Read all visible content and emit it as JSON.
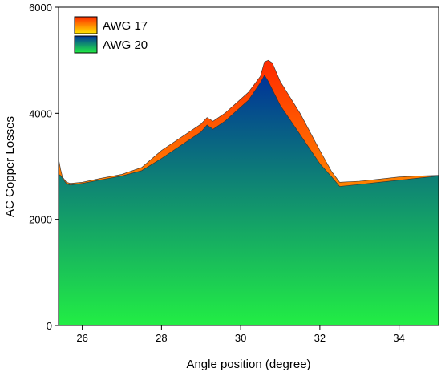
{
  "chart_data": {
    "type": "area",
    "title": "",
    "xlabel": "Angle position (degree)",
    "ylabel": "AC Copper Losses",
    "xlim": [
      25.4,
      35
    ],
    "ylim": [
      0,
      6000
    ],
    "x_ticks": [
      26,
      28,
      30,
      32,
      34
    ],
    "y_ticks": [
      0,
      2000,
      4000,
      6000
    ],
    "x_tick_labels": [
      "26",
      "28",
      "30",
      "32",
      "34"
    ],
    "y_tick_labels": [
      "0",
      "2000",
      "4000",
      "6000"
    ],
    "legend_position": "top-left",
    "grid": false,
    "series": [
      {
        "name": "AWG 17",
        "gradient": [
          "#ff2a00",
          "#ffe600"
        ],
        "x": [
          25.4,
          25.45,
          25.5,
          25.6,
          25.7,
          26.0,
          26.5,
          27.0,
          27.5,
          28.0,
          28.5,
          29.0,
          29.15,
          29.3,
          29.6,
          29.9,
          30.2,
          30.5,
          30.6,
          30.7,
          30.8,
          31.0,
          31.5,
          32.0,
          32.3,
          32.5,
          33.0,
          33.5,
          34.0,
          34.5,
          35.0
        ],
        "y": [
          3150,
          2950,
          2800,
          2700,
          2680,
          2700,
          2780,
          2850,
          2980,
          3300,
          3550,
          3800,
          3920,
          3850,
          4000,
          4200,
          4400,
          4700,
          4970,
          5000,
          4950,
          4600,
          4000,
          3300,
          2900,
          2700,
          2720,
          2760,
          2800,
          2820,
          2830
        ]
      },
      {
        "name": "AWG 20",
        "gradient": [
          "#003399",
          "#22ee44"
        ],
        "x": [
          25.4,
          25.45,
          25.5,
          25.6,
          25.7,
          26.0,
          26.5,
          27.0,
          27.5,
          28.0,
          28.5,
          29.0,
          29.15,
          29.3,
          29.6,
          29.9,
          30.2,
          30.5,
          30.6,
          30.7,
          30.8,
          31.0,
          31.5,
          32.0,
          32.3,
          32.5,
          33.0,
          33.5,
          34.0,
          34.5,
          35.0
        ],
        "y": [
          2850,
          2830,
          2780,
          2670,
          2650,
          2680,
          2750,
          2820,
          2920,
          3150,
          3400,
          3650,
          3780,
          3700,
          3850,
          4050,
          4250,
          4580,
          4720,
          4600,
          4450,
          4150,
          3600,
          3050,
          2800,
          2620,
          2660,
          2700,
          2740,
          2780,
          2820
        ]
      }
    ]
  }
}
